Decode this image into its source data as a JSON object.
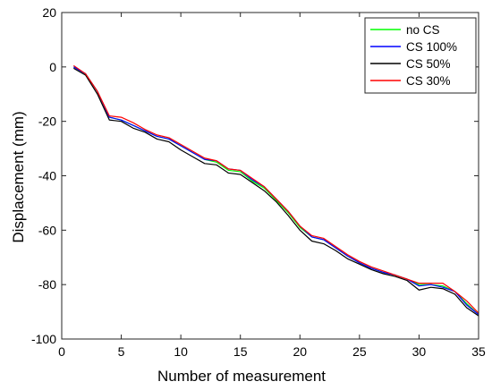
{
  "chart_data": {
    "type": "line",
    "xlabel": "Number of measurement",
    "ylabel": "Displacement (mm)",
    "xlim": [
      0,
      35
    ],
    "ylim": [
      -100,
      20
    ],
    "xticks": [
      0,
      5,
      10,
      15,
      20,
      25,
      30,
      35
    ],
    "yticks": [
      20,
      0,
      -20,
      -40,
      -60,
      -80,
      -100
    ],
    "grid": false,
    "legend_position": "top-right",
    "x": [
      1,
      2,
      3,
      4,
      5,
      6,
      7,
      8,
      9,
      10,
      11,
      12,
      13,
      14,
      15,
      16,
      17,
      18,
      19,
      20,
      21,
      22,
      23,
      24,
      25,
      26,
      27,
      28,
      29,
      30,
      31,
      32,
      33,
      34,
      35
    ],
    "series": [
      {
        "name": "no CS",
        "color": "#00ff00",
        "values": [
          0,
          -2.5,
          -9,
          -18.5,
          -19.5,
          -21.5,
          -23.5,
          -25.5,
          -26.5,
          -29,
          -31.5,
          -34,
          -35,
          -38,
          -38.5,
          -42,
          -44.5,
          -49,
          -53.5,
          -59,
          -62.5,
          -63.5,
          -66.5,
          -69.5,
          -72,
          -74,
          -75.5,
          -76.5,
          -78,
          -80,
          -80,
          -80.5,
          -82.5,
          -87,
          -91
        ]
      },
      {
        "name": "CS 100%",
        "color": "#0000ff",
        "values": [
          0,
          -2.5,
          -9,
          -18.5,
          -19.5,
          -21.5,
          -23.5,
          -25.5,
          -26.5,
          -29,
          -31.5,
          -34,
          -34.5,
          -37.5,
          -38,
          -41.5,
          -44,
          -48.5,
          -53,
          -58.5,
          -62.5,
          -63.5,
          -66.5,
          -69.5,
          -72,
          -74,
          -75.5,
          -76.5,
          -78,
          -80.5,
          -80,
          -81,
          -82.5,
          -87.5,
          -91
        ]
      },
      {
        "name": "CS 50%",
        "color": "#000000",
        "values": [
          -0.5,
          -3,
          -10,
          -19.5,
          -20,
          -22.5,
          -24,
          -26.5,
          -27.5,
          -30.5,
          -33,
          -35.5,
          -36,
          -39,
          -39.5,
          -42.5,
          -45.5,
          -49.5,
          -54.5,
          -60,
          -64,
          -65,
          -67.5,
          -70.5,
          -72.5,
          -74.5,
          -76,
          -77,
          -78.5,
          -82,
          -81,
          -81.5,
          -83.5,
          -88.5,
          -91.5
        ]
      },
      {
        "name": "CS 30%",
        "color": "#ff0000",
        "values": [
          0.5,
          -2.5,
          -9,
          -18,
          -18.5,
          -20.5,
          -23,
          -25,
          -26,
          -28.5,
          -31,
          -33.5,
          -34.5,
          -37.5,
          -38,
          -41,
          -44,
          -48.5,
          -53,
          -58.5,
          -62,
          -63,
          -66,
          -69,
          -71.5,
          -73.5,
          -75,
          -76.5,
          -78,
          -79.5,
          -79.5,
          -79.5,
          -82.5,
          -86,
          -90.5
        ]
      }
    ]
  }
}
